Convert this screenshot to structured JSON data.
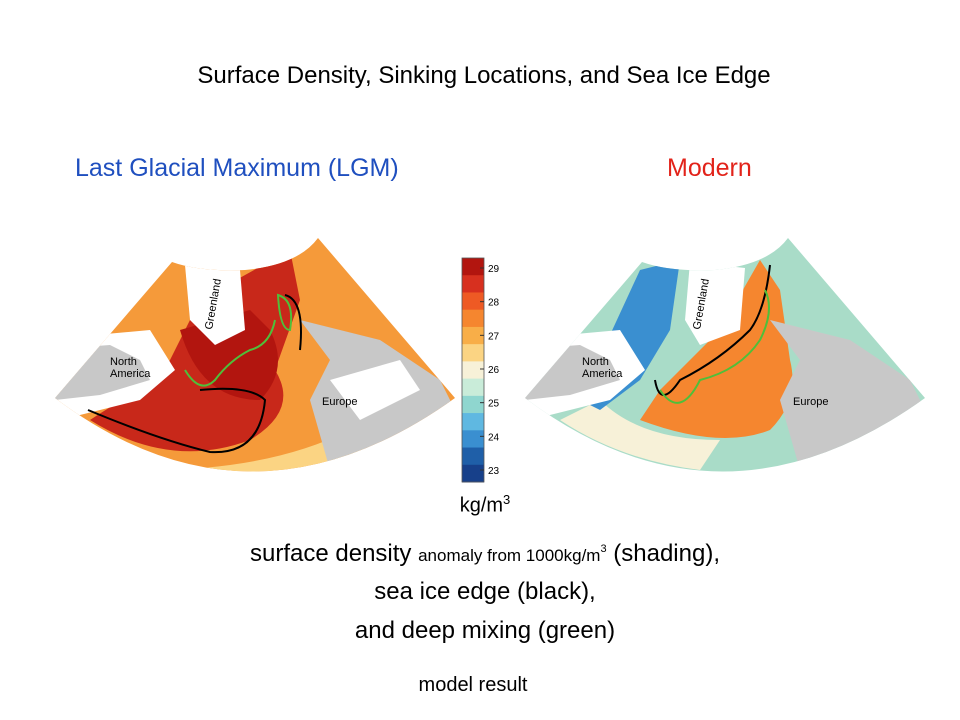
{
  "title": "Surface Density, Sinking Locations, and Sea Ice Edge",
  "panels": [
    {
      "title": "Last Glacial Maximum (LGM)",
      "color": "#1f4fbf",
      "labels": {
        "greenland": "Greenland",
        "north_america": "North\nAmerica",
        "europe": "Europe"
      }
    },
    {
      "title": "Modern",
      "color": "#e2231a",
      "labels": {
        "greenland": "Greenland",
        "north_america": "North\nAmerica",
        "europe": "Europe"
      }
    }
  ],
  "colorbar": {
    "ticks": [
      "29",
      "28",
      "27",
      "26",
      "25",
      "24",
      "23"
    ],
    "colors": [
      "#b2150f",
      "#d7301f",
      "#ee5a24",
      "#f5862f",
      "#f8ae48",
      "#fbd483",
      "#f7f1d8",
      "#c9ecd9",
      "#8fd6cf",
      "#5fb8e1",
      "#3a8fd0",
      "#1f5fa8",
      "#17408a"
    ],
    "unit": "kg/m",
    "unit_sup": "3"
  },
  "caption": {
    "line1": {
      "a": "surface density ",
      "b": "anomaly from 1000kg/m",
      "sup": "3",
      "c": " (shading),"
    },
    "line2": "sea ice edge (black),",
    "line3": "and deep mixing (green)"
  },
  "footer": "model result"
}
